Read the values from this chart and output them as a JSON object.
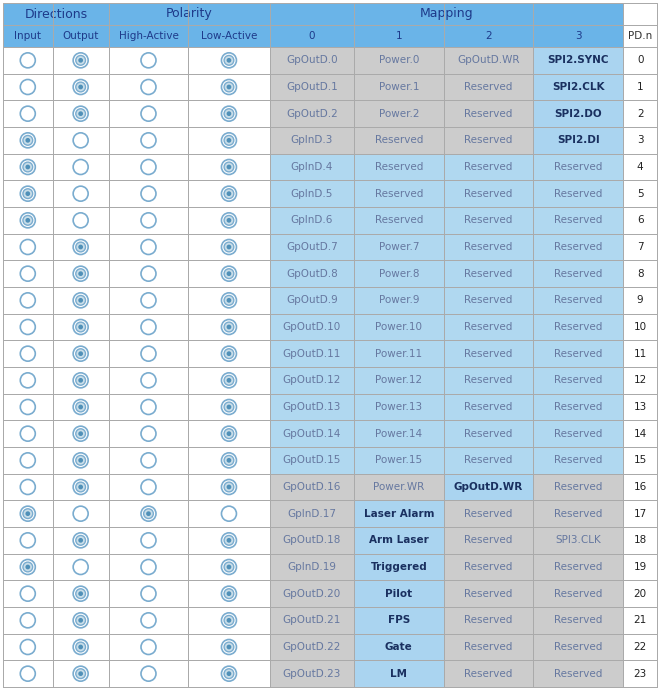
{
  "header2": [
    "Input",
    "Output",
    "High-Active",
    "Low-Active",
    "0",
    "1",
    "2",
    "3",
    "PD.n"
  ],
  "rows": [
    {
      "pin": "GpOutD.0",
      "map1": "Power.0",
      "map2": "GpOutD.WR",
      "map3": "SPI2.SYNC",
      "pdn": 0,
      "dir": "out",
      "pol": "low",
      "row_bg": "gray",
      "map3_blue": true,
      "map2_blue": false,
      "map1_blue": false
    },
    {
      "pin": "GpOutD.1",
      "map1": "Power.1",
      "map2": "Reserved",
      "map3": "SPI2.CLK",
      "pdn": 1,
      "dir": "out",
      "pol": "low",
      "row_bg": "gray",
      "map3_blue": true,
      "map2_blue": false,
      "map1_blue": false
    },
    {
      "pin": "GpOutD.2",
      "map1": "Power.2",
      "map2": "Reserved",
      "map3": "SPI2.DO",
      "pdn": 2,
      "dir": "out",
      "pol": "low",
      "row_bg": "gray",
      "map3_blue": true,
      "map2_blue": false,
      "map1_blue": false
    },
    {
      "pin": "GpInD.3",
      "map1": "Reserved",
      "map2": "Reserved",
      "map3": "SPI2.DI",
      "pdn": 3,
      "dir": "in",
      "pol": "low",
      "row_bg": "gray",
      "map3_blue": true,
      "map2_blue": false,
      "map1_blue": false
    },
    {
      "pin": "GpInD.4",
      "map1": "Reserved",
      "map2": "Reserved",
      "map3": "Reserved",
      "pdn": 4,
      "dir": "in",
      "pol": "low",
      "row_bg": "blue",
      "map3_blue": false,
      "map2_blue": false,
      "map1_blue": false
    },
    {
      "pin": "GpInD.5",
      "map1": "Reserved",
      "map2": "Reserved",
      "map3": "Reserved",
      "pdn": 5,
      "dir": "in",
      "pol": "low",
      "row_bg": "blue",
      "map3_blue": false,
      "map2_blue": false,
      "map1_blue": false
    },
    {
      "pin": "GpInD.6",
      "map1": "Reserved",
      "map2": "Reserved",
      "map3": "Reserved",
      "pdn": 6,
      "dir": "in",
      "pol": "low",
      "row_bg": "blue",
      "map3_blue": false,
      "map2_blue": false,
      "map1_blue": false
    },
    {
      "pin": "GpOutD.7",
      "map1": "Power.7",
      "map2": "Reserved",
      "map3": "Reserved",
      "pdn": 7,
      "dir": "out",
      "pol": "low",
      "row_bg": "blue",
      "map3_blue": false,
      "map2_blue": false,
      "map1_blue": false
    },
    {
      "pin": "GpOutD.8",
      "map1": "Power.8",
      "map2": "Reserved",
      "map3": "Reserved",
      "pdn": 8,
      "dir": "out",
      "pol": "low",
      "row_bg": "blue",
      "map3_blue": false,
      "map2_blue": false,
      "map1_blue": false
    },
    {
      "pin": "GpOutD.9",
      "map1": "Power.9",
      "map2": "Reserved",
      "map3": "Reserved",
      "pdn": 9,
      "dir": "out",
      "pol": "low",
      "row_bg": "blue",
      "map3_blue": false,
      "map2_blue": false,
      "map1_blue": false
    },
    {
      "pin": "GpOutD.10",
      "map1": "Power.10",
      "map2": "Reserved",
      "map3": "Reserved",
      "pdn": 10,
      "dir": "out",
      "pol": "low",
      "row_bg": "blue",
      "map3_blue": false,
      "map2_blue": false,
      "map1_blue": false
    },
    {
      "pin": "GpOutD.11",
      "map1": "Power.11",
      "map2": "Reserved",
      "map3": "Reserved",
      "pdn": 11,
      "dir": "out",
      "pol": "low",
      "row_bg": "blue",
      "map3_blue": false,
      "map2_blue": false,
      "map1_blue": false
    },
    {
      "pin": "GpOutD.12",
      "map1": "Power.12",
      "map2": "Reserved",
      "map3": "Reserved",
      "pdn": 12,
      "dir": "out",
      "pol": "low",
      "row_bg": "blue",
      "map3_blue": false,
      "map2_blue": false,
      "map1_blue": false
    },
    {
      "pin": "GpOutD.13",
      "map1": "Power.13",
      "map2": "Reserved",
      "map3": "Reserved",
      "pdn": 13,
      "dir": "out",
      "pol": "low",
      "row_bg": "blue",
      "map3_blue": false,
      "map2_blue": false,
      "map1_blue": false
    },
    {
      "pin": "GpOutD.14",
      "map1": "Power.14",
      "map2": "Reserved",
      "map3": "Reserved",
      "pdn": 14,
      "dir": "out",
      "pol": "low",
      "row_bg": "blue",
      "map3_blue": false,
      "map2_blue": false,
      "map1_blue": false
    },
    {
      "pin": "GpOutD.15",
      "map1": "Power.15",
      "map2": "Reserved",
      "map3": "Reserved",
      "pdn": 15,
      "dir": "out",
      "pol": "low",
      "row_bg": "blue",
      "map3_blue": false,
      "map2_blue": false,
      "map1_blue": false
    },
    {
      "pin": "GpOutD.16",
      "map1": "Power.WR",
      "map2": "GpOutD.WR",
      "map3": "Reserved",
      "pdn": 16,
      "dir": "out",
      "pol": "low",
      "row_bg": "gray",
      "map3_blue": false,
      "map2_blue": true,
      "map1_blue": false
    },
    {
      "pin": "GpInD.17",
      "map1": "Laser Alarm",
      "map2": "Reserved",
      "map3": "Reserved",
      "pdn": 17,
      "dir": "in",
      "pol": "high",
      "row_bg": "gray",
      "map3_blue": false,
      "map2_blue": false,
      "map1_blue": true
    },
    {
      "pin": "GpOutD.18",
      "map1": "Arm Laser",
      "map2": "Reserved",
      "map3": "SPI3.CLK",
      "pdn": 18,
      "dir": "out",
      "pol": "low",
      "row_bg": "gray",
      "map3_blue": false,
      "map2_blue": false,
      "map1_blue": true
    },
    {
      "pin": "GpInD.19",
      "map1": "Triggered",
      "map2": "Reserved",
      "map3": "Reserved",
      "pdn": 19,
      "dir": "in",
      "pol": "low",
      "row_bg": "gray",
      "map3_blue": false,
      "map2_blue": false,
      "map1_blue": true
    },
    {
      "pin": "GpOutD.20",
      "map1": "Pilot",
      "map2": "Reserved",
      "map3": "Reserved",
      "pdn": 20,
      "dir": "out",
      "pol": "low",
      "row_bg": "gray",
      "map3_blue": false,
      "map2_blue": false,
      "map1_blue": true
    },
    {
      "pin": "GpOutD.21",
      "map1": "FPS",
      "map2": "Reserved",
      "map3": "Reserved",
      "pdn": 21,
      "dir": "out",
      "pol": "low",
      "row_bg": "gray",
      "map3_blue": false,
      "map2_blue": false,
      "map1_blue": true
    },
    {
      "pin": "GpOutD.22",
      "map1": "Gate",
      "map2": "Reserved",
      "map3": "Reserved",
      "pdn": 22,
      "dir": "out",
      "pol": "low",
      "row_bg": "gray",
      "map3_blue": false,
      "map2_blue": false,
      "map1_blue": true
    },
    {
      "pin": "GpOutD.23",
      "map1": "LM",
      "map2": "Reserved",
      "map3": "Reserved",
      "pdn": 23,
      "dir": "out",
      "pol": "low",
      "row_bg": "gray",
      "map3_blue": false,
      "map2_blue": false,
      "map1_blue": true
    }
  ],
  "header_bg": "#6ab4e8",
  "header_text_color": "#1e3a8a",
  "gray_bg": "#cccccc",
  "blue_bg": "#b0d8f0",
  "blue_highlight": "#aad4f0",
  "white_bg": "#ffffff",
  "grid_color": "#aaaaaa",
  "text_gray": "#6678a0",
  "text_blue_bold": "#1a3060",
  "pdn_text": "#222222",
  "radio_border": "#7aaccf",
  "radio_fill_outer": "#c8dde8",
  "radio_fill_inner": "#5090b8"
}
